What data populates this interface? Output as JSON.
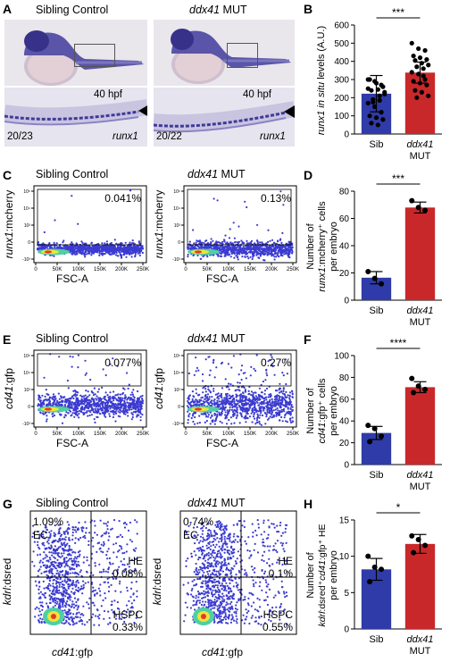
{
  "panels": {
    "A": {
      "letter": "A",
      "left_title": "Sibling Control",
      "right_title_gene": "ddx41",
      "right_title_suffix": " MUT",
      "left_stage": "40 hpf",
      "right_stage": "40 hpf",
      "left_count": "20/23",
      "right_count": "20/22",
      "left_probe": "runx1",
      "right_probe": "runx1"
    },
    "B": {
      "letter": "B",
      "ylabel_italic": "runx1 in situ",
      "ylabel_rest": " levels (A.U.)",
      "significance": "***",
      "chart_data": {
        "type": "bar",
        "categories": [
          "Sib",
          "ddx41 MUT"
        ],
        "values": [
          222,
          338
        ],
        "errors": [
          100,
          58
        ],
        "ylim": [
          0,
          600
        ],
        "yticks": [
          0,
          100,
          200,
          300,
          400,
          500,
          600
        ],
        "points": [
          [
            300,
            290,
            270,
            300,
            280,
            260,
            240,
            245,
            230,
            190,
            185,
            170,
            150,
            120,
            100,
            90,
            80,
            60,
            50,
            220,
            175,
            210,
            250
          ],
          [
            500,
            470,
            460,
            430,
            420,
            410,
            405,
            390,
            380,
            370,
            360,
            340,
            330,
            300,
            290,
            280,
            270,
            240,
            230,
            210,
            200,
            320
          ]
        ],
        "colors": [
          "#2f3ba8",
          "#c9282a"
        ]
      }
    },
    "C": {
      "letter": "C",
      "left_title": "Sibling Control",
      "right_title_gene": "ddx41",
      "right_title_suffix": " MUT",
      "ylabel_italic": "runx1",
      "ylabel_rest": ":mcherry",
      "xlabel": "FSC-A",
      "left_pct": "0.041%",
      "right_pct": "0.13%",
      "xticks": [
        "0",
        "50K",
        "100K",
        "150K",
        "200K",
        "250K"
      ]
    },
    "D": {
      "letter": "D",
      "ylabel_line1": "Number of",
      "ylabel_line2_italic": "runx1",
      "ylabel_line2_rest": ":mcherry⁺ cells",
      "ylabel_line3": "per embryo",
      "significance": "***",
      "chart_data": {
        "type": "bar",
        "categories": [
          "Sib",
          "ddx41 MUT"
        ],
        "values": [
          16.5,
          68
        ],
        "errors": [
          4.5,
          4
        ],
        "ylim": [
          0,
          80
        ],
        "yticks": [
          0,
          20,
          40,
          60,
          80
        ],
        "points": [
          [
            21,
            16,
            12
          ],
          [
            73,
            68,
            66
          ]
        ],
        "colors": [
          "#2f3ba8",
          "#c9282a"
        ]
      }
    },
    "E": {
      "letter": "E",
      "left_title": "Sibling Control",
      "right_title_gene": "ddx41",
      "right_title_suffix": " MUT",
      "ylabel_italic": "cd41",
      "ylabel_rest": ":gfp",
      "xlabel": "FSC-A",
      "left_pct": "0.077%",
      "right_pct": "0.27%",
      "xticks": [
        "0",
        "50K",
        "100K",
        "150K",
        "200K",
        "250K"
      ]
    },
    "F": {
      "letter": "F",
      "ylabel_line1": "Number of",
      "ylabel_line2_italic": "cd41",
      "ylabel_line2_rest": ":gfp⁺ cells",
      "ylabel_line3": "per embryo",
      "significance": "****",
      "chart_data": {
        "type": "bar",
        "categories": [
          "Sib",
          "ddx41 MUT"
        ],
        "values": [
          29,
          71
        ],
        "errors": [
          6,
          5
        ],
        "ylim": [
          0,
          100
        ],
        "yticks": [
          0,
          20,
          40,
          60,
          80,
          100
        ],
        "points": [
          [
            36,
            33,
            26,
            21
          ],
          [
            79,
            72,
            69,
            66
          ]
        ],
        "colors": [
          "#2f3ba8",
          "#c9282a"
        ]
      }
    },
    "G": {
      "letter": "G",
      "left_title": "Sibling Control",
      "right_title_gene": "ddx41",
      "right_title_suffix": " MUT",
      "ylabel_italic": "kdrl",
      "ylabel_rest": ":dsred",
      "xlabel_italic": "cd41",
      "xlabel_rest": ":gfp",
      "left": {
        "ec_pct": "1.09%",
        "ec": "EC",
        "he": "HE",
        "he_pct": "0.08%",
        "hspc": "HSPC",
        "hspc_pct": "0.33%"
      },
      "right": {
        "ec_pct": "0.74%",
        "ec": "EC",
        "he": "HE",
        "he_pct": "0.1%",
        "hspc": "HSPC",
        "hspc_pct": "0.55%"
      }
    },
    "H": {
      "letter": "H",
      "ylabel_pre": "Number of",
      "ylabel_k_italic": "kdrl",
      "ylabel_k_rest": ":dsred⁺",
      "ylabel_c_italic": "cd41",
      "ylabel_c_rest": ":gfp⁺ HE",
      "ylabel_line3": "per embryo",
      "significance": "*",
      "chart_data": {
        "type": "bar",
        "categories": [
          "Sib",
          "ddx41 MUT"
        ],
        "values": [
          8.2,
          11.7
        ],
        "errors": [
          1.5,
          1.3
        ],
        "ylim": [
          0,
          15
        ],
        "yticks": [
          0,
          5,
          10,
          15
        ],
        "points": [
          [
            10,
            8.5,
            8.2,
            6.5
          ],
          [
            12.8,
            12.3,
            11.5,
            10.5
          ]
        ],
        "colors": [
          "#2f3ba8",
          "#c9282a"
        ]
      }
    }
  },
  "labels": {
    "sib": "Sib",
    "mut_gene": "ddx41",
    "mut_suffix": "MUT"
  }
}
